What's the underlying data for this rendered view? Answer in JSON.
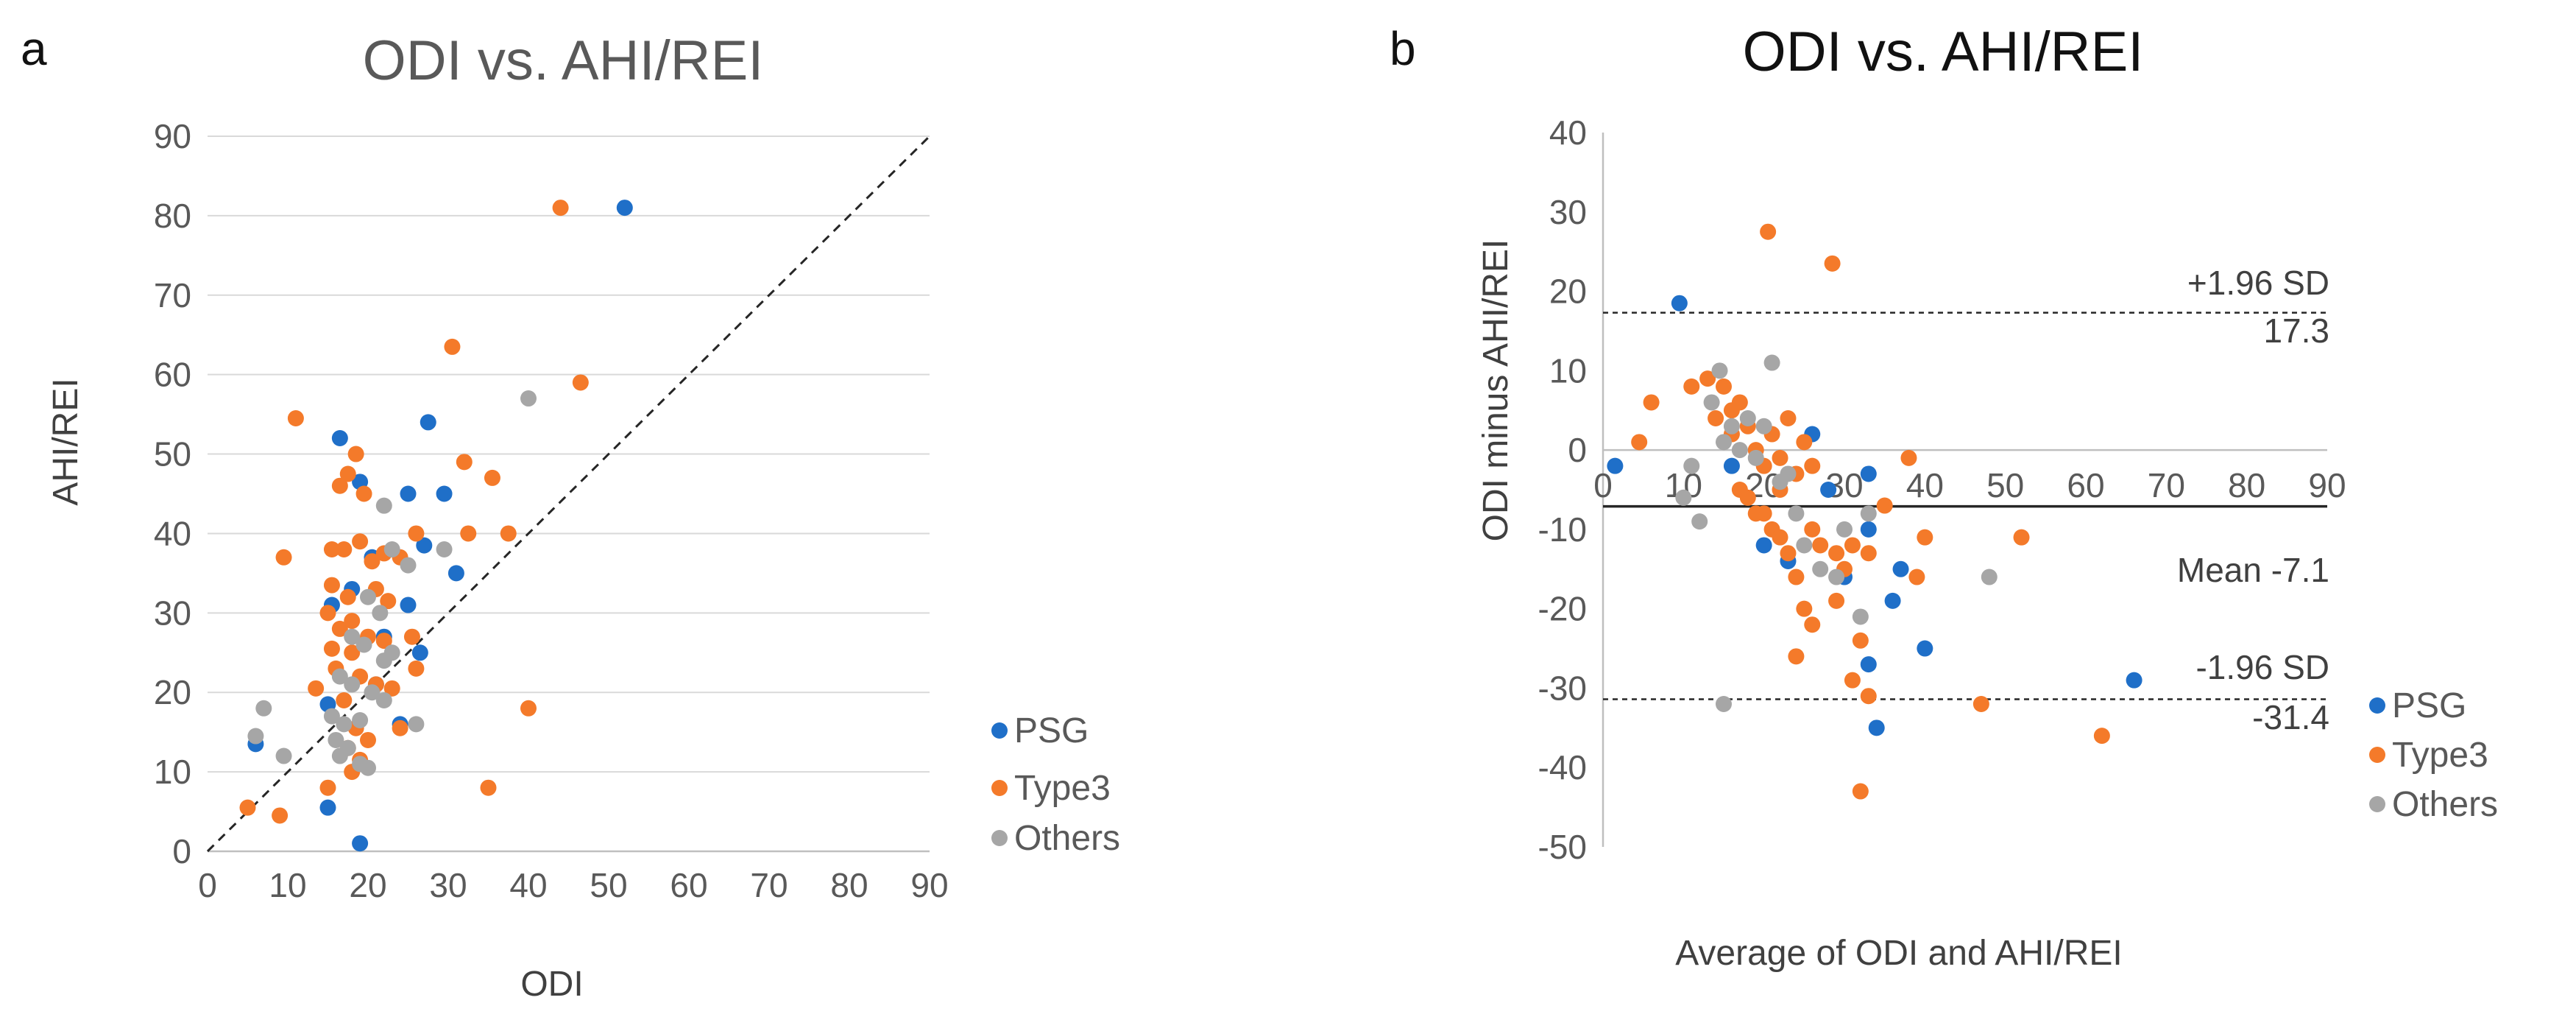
{
  "colors": {
    "PSG": "#1f6fc8",
    "Type3": "#f47a2a",
    "Others": "#a6a6a6",
    "axis": "#bfbfbf",
    "grid": "#d9d9d9",
    "title_a": "#595959",
    "title_b": "#111111",
    "lines": "#262626"
  },
  "chart_data": [
    {
      "panel": "a",
      "type": "scatter",
      "title": "ODI vs. AHI/REI",
      "xlabel": "ODI",
      "ylabel": "AHI/REI",
      "xlim": [
        0,
        90
      ],
      "ylim": [
        0,
        90
      ],
      "xticks": [
        0,
        10,
        20,
        30,
        40,
        50,
        60,
        70,
        80,
        90
      ],
      "yticks": [
        0,
        10,
        20,
        30,
        40,
        50,
        60,
        70,
        80,
        90
      ],
      "grid": "horizontal",
      "legend": "right",
      "reference_line": "y = x (dashed)",
      "series": [
        {
          "name": "PSG",
          "points": [
            [
              52,
              81
            ],
            [
              27.5,
              54
            ],
            [
              16.5,
              52
            ],
            [
              19,
              46.5
            ],
            [
              25,
              45
            ],
            [
              29.5,
              45
            ],
            [
              31,
              35
            ],
            [
              27,
              38.5
            ],
            [
              20.5,
              37
            ],
            [
              15.5,
              31
            ],
            [
              18,
              33
            ],
            [
              22,
              27
            ],
            [
              25,
              31
            ],
            [
              26.5,
              25
            ],
            [
              24,
              16
            ],
            [
              15,
              18.5
            ],
            [
              15,
              5.5
            ],
            [
              19,
              1
            ],
            [
              6,
              13.5
            ],
            [
              21,
              21
            ]
          ]
        },
        {
          "name": "Type3",
          "points": [
            [
              44,
              81
            ],
            [
              30.5,
              63.5
            ],
            [
              46.5,
              59
            ],
            [
              11,
              54.5
            ],
            [
              18.5,
              50
            ],
            [
              17.5,
              47.5
            ],
            [
              16.5,
              46
            ],
            [
              19.5,
              45
            ],
            [
              32,
              49
            ],
            [
              35.5,
              47
            ],
            [
              37.5,
              40
            ],
            [
              32.5,
              40
            ],
            [
              26,
              40
            ],
            [
              9.5,
              37
            ],
            [
              15.5,
              38
            ],
            [
              17,
              38
            ],
            [
              19,
              39
            ],
            [
              20.5,
              36.5
            ],
            [
              22,
              37.5
            ],
            [
              24,
              37
            ],
            [
              15.5,
              33.5
            ],
            [
              17.5,
              32
            ],
            [
              21,
              33
            ],
            [
              22.5,
              31.5
            ],
            [
              15,
              30
            ],
            [
              16.5,
              28
            ],
            [
              18,
              29
            ],
            [
              20,
              27
            ],
            [
              22,
              26.5
            ],
            [
              25.5,
              27
            ],
            [
              15.5,
              25.5
            ],
            [
              18,
              25
            ],
            [
              16,
              23
            ],
            [
              19,
              22
            ],
            [
              21,
              21
            ],
            [
              23,
              20.5
            ],
            [
              13.5,
              20.5
            ],
            [
              17,
              19
            ],
            [
              18.5,
              15.5
            ],
            [
              20,
              14
            ],
            [
              17.5,
              13
            ],
            [
              19,
              11.5
            ],
            [
              18,
              10
            ],
            [
              15,
              8
            ],
            [
              35,
              8
            ],
            [
              40,
              18
            ],
            [
              5,
              5.5
            ],
            [
              9,
              4.5
            ],
            [
              24,
              15.5
            ],
            [
              26,
              23
            ]
          ]
        },
        {
          "name": "Others",
          "points": [
            [
              40,
              57
            ],
            [
              29.5,
              38
            ],
            [
              22,
              43.5
            ],
            [
              23,
              38
            ],
            [
              25,
              36
            ],
            [
              20,
              32
            ],
            [
              21.5,
              30
            ],
            [
              18,
              27
            ],
            [
              19.5,
              26
            ],
            [
              22,
              24
            ],
            [
              16.5,
              22
            ],
            [
              18,
              21
            ],
            [
              20.5,
              20
            ],
            [
              22,
              19
            ],
            [
              15.5,
              17
            ],
            [
              17,
              16
            ],
            [
              19,
              16.5
            ],
            [
              16,
              14
            ],
            [
              17.5,
              13
            ],
            [
              16.5,
              12
            ],
            [
              19,
              11
            ],
            [
              20,
              10.5
            ],
            [
              26,
              16
            ],
            [
              6,
              14.5
            ],
            [
              7,
              18
            ],
            [
              9.5,
              12
            ],
            [
              23,
              25
            ]
          ]
        }
      ]
    },
    {
      "panel": "b",
      "type": "scatter",
      "title": "ODI vs. AHI/REI",
      "xlabel": "Average of ODI and AHI/REI",
      "ylabel": "ODI minus AHI/REI",
      "xlim": [
        0,
        90
      ],
      "ylim": [
        -50,
        40
      ],
      "xticks": [
        0,
        10,
        20,
        30,
        40,
        50,
        60,
        70,
        80,
        90
      ],
      "yticks": [
        -50,
        -40,
        -30,
        -20,
        -10,
        0,
        10,
        20,
        30,
        40
      ],
      "legend": "right",
      "reference_lines": [
        {
          "name": "upper",
          "y": 17.3,
          "label": "+1.96 SD",
          "value_label": "17.3",
          "style": "dashed"
        },
        {
          "name": "mean",
          "y": -7.1,
          "label": "Mean -7.1",
          "style": "solid"
        },
        {
          "name": "lower",
          "y": -31.4,
          "label": "-1.96 SD",
          "value_label": "-31.4",
          "style": "dashed"
        }
      ],
      "series": [
        {
          "name": "PSG",
          "points": [
            [
              66,
              -29
            ],
            [
              9.5,
              18.5
            ],
            [
              1.5,
              -2
            ],
            [
              16,
              -2
            ],
            [
              26,
              2
            ],
            [
              28,
              -5
            ],
            [
              30,
              -16
            ],
            [
              33,
              -3
            ],
            [
              33,
              -10
            ],
            [
              36,
              -19
            ],
            [
              37,
              -15
            ],
            [
              40,
              -25
            ],
            [
              33,
              -27
            ],
            [
              34,
              -35
            ],
            [
              20,
              -12
            ],
            [
              23,
              -14
            ]
          ]
        },
        {
          "name": "Type3",
          "points": [
            [
              20.5,
              27.5
            ],
            [
              28.5,
              23.5
            ],
            [
              6,
              6
            ],
            [
              4.5,
              1
            ],
            [
              11,
              8
            ],
            [
              13,
              9
            ],
            [
              15,
              8
            ],
            [
              17,
              6
            ],
            [
              14,
              4
            ],
            [
              16,
              5
            ],
            [
              18,
              3
            ],
            [
              19,
              0
            ],
            [
              21,
              2
            ],
            [
              22,
              -1
            ],
            [
              23,
              4
            ],
            [
              24,
              -3
            ],
            [
              25,
              1
            ],
            [
              26,
              -2
            ],
            [
              17,
              -5
            ],
            [
              18,
              -6
            ],
            [
              20,
              -8
            ],
            [
              21,
              -10
            ],
            [
              22,
              -11
            ],
            [
              23,
              -13
            ],
            [
              24,
              -16
            ],
            [
              26,
              -10
            ],
            [
              27,
              -12
            ],
            [
              25,
              -20
            ],
            [
              26,
              -22
            ],
            [
              24,
              -26
            ],
            [
              29,
              -13
            ],
            [
              30,
              -15
            ],
            [
              29,
              -19
            ],
            [
              31,
              -12
            ],
            [
              32,
              -24
            ],
            [
              33,
              -13
            ],
            [
              35,
              -7
            ],
            [
              38,
              -1
            ],
            [
              39,
              -16
            ],
            [
              40,
              -11
            ],
            [
              47,
              -32
            ],
            [
              52,
              -11
            ],
            [
              62,
              -36
            ],
            [
              31,
              -29
            ],
            [
              33,
              -31
            ],
            [
              32,
              -43
            ],
            [
              20,
              -2
            ],
            [
              22,
              -5
            ],
            [
              19,
              -8
            ],
            [
              16,
              2
            ]
          ]
        },
        {
          "name": "Others",
          "points": [
            [
              21,
              11
            ],
            [
              13.5,
              6
            ],
            [
              14.5,
              10
            ],
            [
              16,
              3
            ],
            [
              18,
              4
            ],
            [
              15,
              1
            ],
            [
              17,
              0
            ],
            [
              20,
              3
            ],
            [
              11,
              -2
            ],
            [
              10,
              -6
            ],
            [
              12,
              -9
            ],
            [
              15,
              -32
            ],
            [
              23,
              -3
            ],
            [
              24,
              -8
            ],
            [
              25,
              -12
            ],
            [
              27,
              -15
            ],
            [
              29,
              -16
            ],
            [
              30,
              -10
            ],
            [
              32,
              -21
            ],
            [
              33,
              -8
            ],
            [
              48,
              -16
            ],
            [
              19,
              -1
            ],
            [
              22,
              -4
            ]
          ]
        }
      ]
    }
  ]
}
